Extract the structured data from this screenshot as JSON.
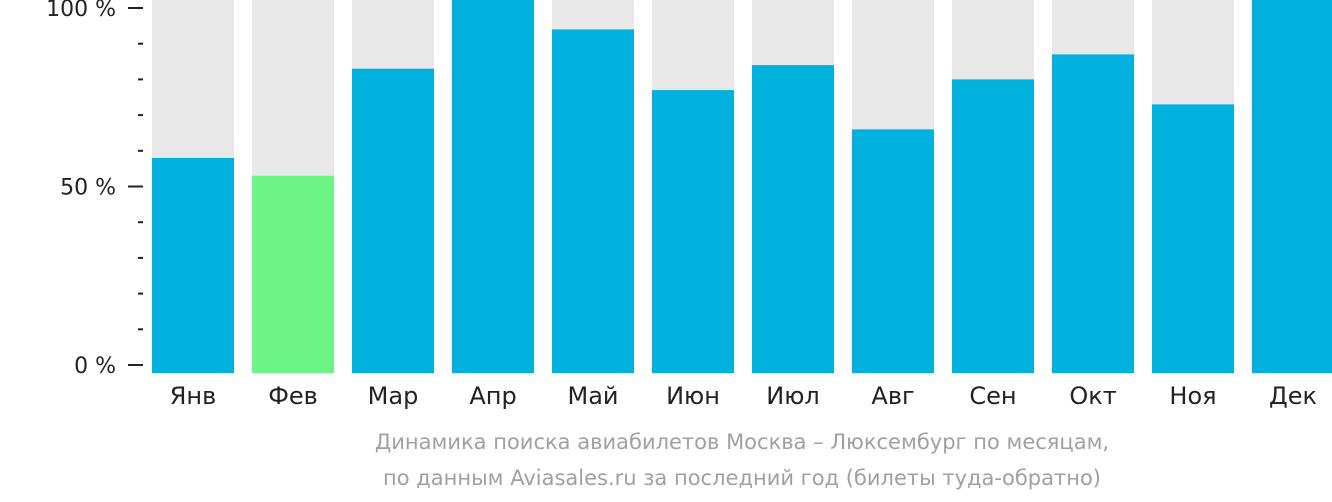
{
  "chart_data": {
    "type": "bar",
    "categories": [
      "Янв",
      "Фев",
      "Мар",
      "Апр",
      "Май",
      "Июн",
      "Июл",
      "Авг",
      "Сен",
      "Окт",
      "Ноя",
      "Дек"
    ],
    "values": [
      58,
      53,
      83,
      105,
      94,
      77,
      84,
      66,
      80,
      87,
      73,
      105
    ],
    "highlight_index": 1,
    "ylim": [
      0,
      100
    ],
    "yticks": [
      "0 %",
      "50 %",
      "100 %"
    ],
    "colors": {
      "bar": "#00b0dd",
      "highlight": "#6cf487",
      "background_bar": "#e8e8e8",
      "axis": "#222222"
    }
  },
  "caption": {
    "line1": "Динамика поиска авиабилетов Москва – Люксембург по месяцам,",
    "line2": "по данным Aviasales.ru за последний год (билеты туда-обратно)"
  }
}
